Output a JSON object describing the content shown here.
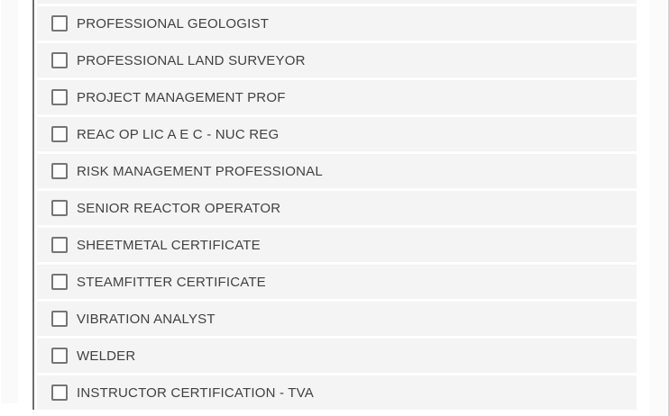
{
  "view": {
    "type": "certification-multiselect-list"
  },
  "certifications": {
    "items": [
      {
        "label": "PROFESSIONAL GEOLOGIST",
        "checked": false
      },
      {
        "label": "PROFESSIONAL LAND SURVEYOR",
        "checked": false
      },
      {
        "label": "PROJECT MANAGEMENT PROF",
        "checked": false
      },
      {
        "label": "REAC OP LIC A E C - NUC REG",
        "checked": false
      },
      {
        "label": "RISK MANAGEMENT PROFESSIONAL",
        "checked": false
      },
      {
        "label": "SENIOR REACTOR OPERATOR",
        "checked": false
      },
      {
        "label": "SHEETMETAL CERTIFICATE",
        "checked": false
      },
      {
        "label": "STEAMFITTER CERTIFICATE",
        "checked": false
      },
      {
        "label": "VIBRATION ANALYST",
        "checked": false
      },
      {
        "label": "WELDER",
        "checked": false
      },
      {
        "label": "INSTRUCTOR CERTIFICATION - TVA",
        "checked": false
      }
    ]
  },
  "colors": {
    "row_bg": "#f4f4f4",
    "text": "#414141",
    "checkbox_border": "#757575",
    "divider_line": "#6e6e6e",
    "left_strip": "#fafafa",
    "scroll_strip": "#fbfbfb",
    "scroll_strip_border": "#cfcfcf"
  }
}
